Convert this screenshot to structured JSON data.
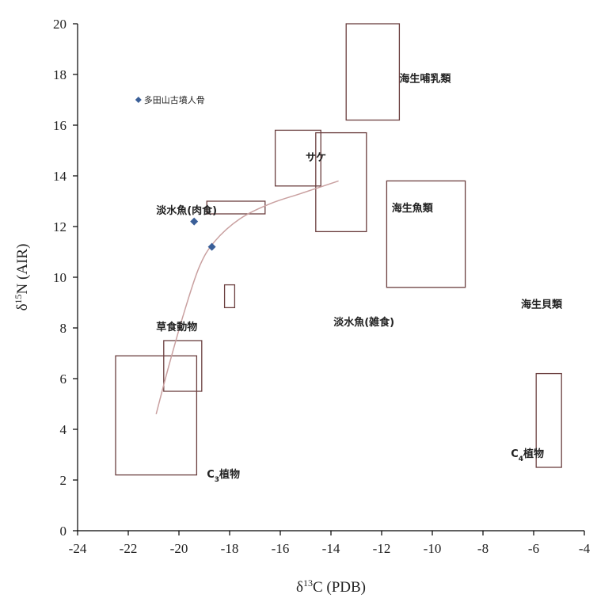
{
  "chart_data": {
    "type": "scatter",
    "xlabel": {
      "prefix": "δ",
      "sup": "13",
      "rest": "C (PDB)"
    },
    "ylabel": {
      "prefix": "δ",
      "sup": "15",
      "rest": "N (AIR)"
    },
    "xlim": [
      -24,
      -4
    ],
    "ylim": [
      0,
      20
    ],
    "xticks": [
      "-24",
      "-22",
      "-20",
      "-18",
      "-16",
      "-14",
      "-12",
      "-10",
      "-8",
      "-6",
      "-4"
    ],
    "yticks": [
      "0",
      "2",
      "4",
      "6",
      "8",
      "10",
      "12",
      "14",
      "16",
      "18",
      "20"
    ],
    "grid": false,
    "legend": {
      "label": "多田山古墳人骨",
      "marker": "◆",
      "x": -21.6,
      "y": 17.0
    },
    "points": [
      {
        "x": -19.4,
        "y": 12.2
      },
      {
        "x": -18.7,
        "y": 11.2
      }
    ],
    "trend_line": [
      {
        "x": -20.9,
        "y": 4.6
      },
      {
        "x": -20.4,
        "y": 6.5
      },
      {
        "x": -19.8,
        "y": 8.6
      },
      {
        "x": -19.2,
        "y": 10.4
      },
      {
        "x": -18.6,
        "y": 11.4
      },
      {
        "x": -17.6,
        "y": 12.3
      },
      {
        "x": -16.4,
        "y": 12.9
      },
      {
        "x": -15.2,
        "y": 13.3
      },
      {
        "x": -13.7,
        "y": 13.8
      }
    ],
    "ranges": [
      {
        "name": "C3-plants",
        "x": [
          -22.5,
          -19.3
        ],
        "y": [
          2.2,
          6.9
        ]
      },
      {
        "name": "herbivores",
        "x": [
          -20.6,
          -19.1
        ],
        "y": [
          5.5,
          7.5
        ]
      },
      {
        "name": "freshwater-carnivorous",
        "x": [
          -18.9,
          -16.6
        ],
        "y": [
          12.5,
          13.0
        ]
      },
      {
        "name": "freshwater-omnivorous",
        "x": [
          -18.2,
          -17.8
        ],
        "y": [
          8.8,
          9.7
        ]
      },
      {
        "name": "salmon",
        "x": [
          -16.2,
          -14.4
        ],
        "y": [
          13.6,
          15.8
        ]
      },
      {
        "name": "marine-fish",
        "x": [
          -14.6,
          -12.6
        ],
        "y": [
          11.8,
          15.7
        ]
      },
      {
        "name": "marine-mammals",
        "x": [
          -13.4,
          -11.3
        ],
        "y": [
          16.2,
          20.0
        ]
      },
      {
        "name": "marine-shellfish",
        "x": [
          -11.8,
          -8.7
        ],
        "y": [
          9.6,
          13.8
        ]
      },
      {
        "name": "C4-plants",
        "x": [
          -5.9,
          -4.9
        ],
        "y": [
          2.5,
          6.2
        ]
      }
    ],
    "annotations": [
      {
        "text": "海生哺乳類",
        "x": -11.3,
        "y": 17.7
      },
      {
        "text": "サケ",
        "x": -15.0,
        "y": 14.6
      },
      {
        "text": "海生魚類",
        "x": -11.6,
        "y": 12.6
      },
      {
        "text": "淡水魚(肉食)",
        "x": -20.9,
        "y": 12.5
      },
      {
        "text": "海生貝類",
        "x": -6.5,
        "y": 8.8
      },
      {
        "text": "草食動物",
        "x": -20.9,
        "y": 7.9
      },
      {
        "text": "淡水魚(雑食)",
        "x": -13.9,
        "y": 8.1
      }
    ],
    "subscript_annotations": [
      {
        "pre": "C",
        "sub": "3",
        "post": "植物",
        "x": -18.9,
        "y": 2.1
      },
      {
        "pre": "C",
        "sub": "4",
        "post": "植物",
        "x": -6.9,
        "y": 2.9
      }
    ]
  }
}
